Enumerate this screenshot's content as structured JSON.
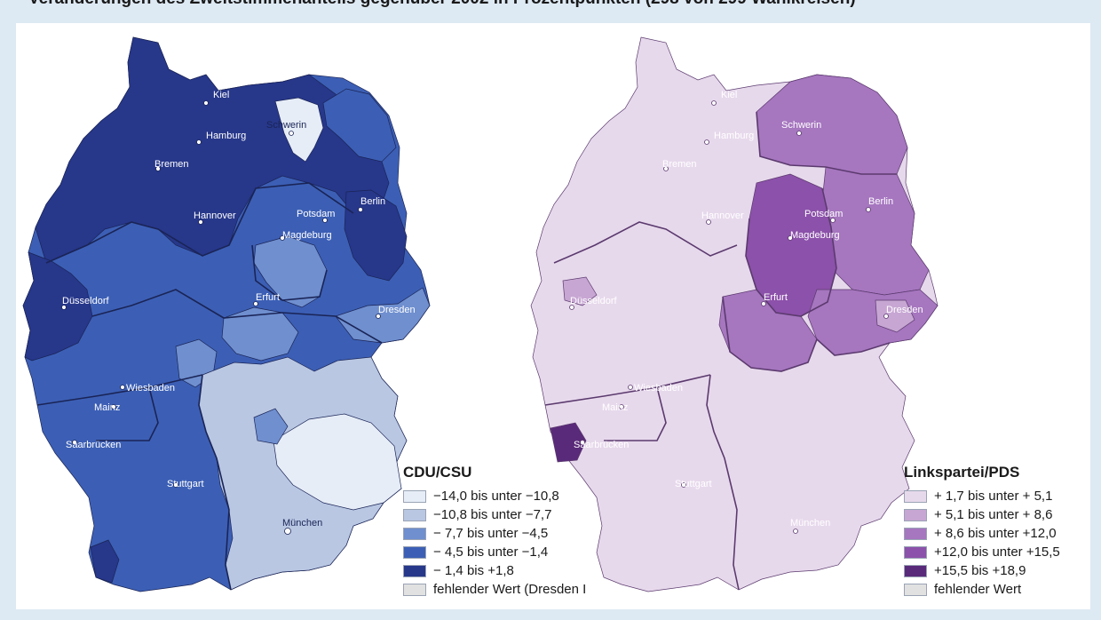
{
  "header": {
    "headline": "Veränderungen des Zweitstimmenanteils gegenüber 2002 in Prozentpunkten (298 von 299 Wahlkreisen)"
  },
  "maps": {
    "cdu": {
      "legend_title": "CDU/CSU",
      "colors": {
        "c1": "#e6edf7",
        "c2": "#b9c7e3",
        "c3": "#6f8fcf",
        "c4": "#3c5fb5",
        "c5": "#27378a",
        "missing": "#e1e1e1",
        "border": "#1a2456"
      },
      "legend": [
        {
          "label": "−14,0 bis unter −10,8",
          "color": "#e6edf7"
        },
        {
          "label": "−10,8 bis unter −7,7",
          "color": "#b9c7e3"
        },
        {
          "label": "−  7,7 bis unter −4,5",
          "color": "#6f8fcf"
        },
        {
          "label": "−  4,5 bis unter −1,4",
          "color": "#3c5fb5"
        },
        {
          "label": "−  1,4 bis +1,8",
          "color": "#27378a"
        },
        {
          "label": "fehlender Wert (Dresden I",
          "color": "#e1e1e1"
        }
      ],
      "cities": {
        "kiel": "Kiel",
        "hamburg": "Hamburg",
        "schwerin": "Schwerin",
        "bremen": "Bremen",
        "hannover": "Hannover",
        "potsdam": "Potsdam",
        "berlin": "Berlin",
        "magdeburg": "Magdeburg",
        "duesseldorf": "Düsseldorf",
        "erfurt": "Erfurt",
        "dresden": "Dresden",
        "wiesbaden": "Wiesbaden",
        "mainz": "Mainz",
        "saarbruecken": "Saarbrücken",
        "stuttgart": "Stuttgart",
        "muenchen": "München"
      }
    },
    "pds": {
      "legend_title": "Linkspartei/PDS",
      "colors": {
        "c1": "#e7d9ec",
        "c2": "#c7a6d3",
        "c3": "#a676bf",
        "c4": "#8c51aa",
        "c5": "#5a2a7a",
        "missing": "#e1e1e1",
        "border": "#5b3a6e"
      },
      "legend": [
        {
          "label": "+  1,7 bis unter +  5,1",
          "color": "#e7d9ec"
        },
        {
          "label": "+  5,1 bis unter +  8,6",
          "color": "#c7a6d3"
        },
        {
          "label": "+  8,6 bis unter +12,0",
          "color": "#a676bf"
        },
        {
          "label": "+12,0 bis unter +15,5",
          "color": "#8c51aa"
        },
        {
          "label": "+15,5 bis +18,9",
          "color": "#5a2a7a"
        },
        {
          "label": "fehlender Wert",
          "color": "#e1e1e1"
        }
      ],
      "cities": {
        "kiel": "Kiel",
        "hamburg": "Hamburg",
        "schwerin": "Schwerin",
        "bremen": "Bremen",
        "hannover": "Hannover",
        "potsdam": "Potsdam",
        "berlin": "Berlin",
        "magdeburg": "Magdeburg",
        "duesseldorf": "Düsseldorf",
        "erfurt": "Erfurt",
        "dresden": "Dresden",
        "wiesbaden": "Wiesbaden",
        "mainz": "Mainz",
        "saarbruecken": "Saarbrücken",
        "stuttgart": "Stuttgart",
        "muenchen": "München"
      }
    }
  }
}
